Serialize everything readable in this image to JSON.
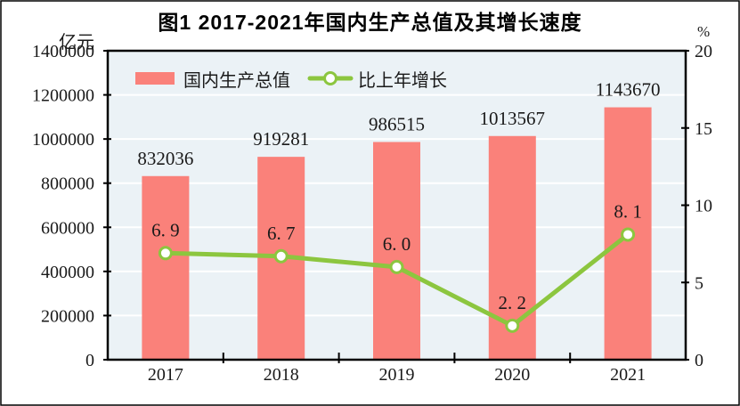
{
  "figure": {
    "title": "图1  2017-2021年国内生产总值及其增长速度",
    "left_axis_unit": "亿元",
    "right_axis_unit": "%"
  },
  "legend": {
    "position": "top-left-inside",
    "items": [
      {
        "label": "国内生产总值",
        "marker": "bar-swatch"
      },
      {
        "label": "比上年增长",
        "marker": "line-with-circle-marker"
      }
    ]
  },
  "colors": {
    "bar": "#FA817A",
    "line": "#8CC63F",
    "marker_fill": "#FFFFFF",
    "plot_bg": "#EBF2F6",
    "grid": "#FFFFFF",
    "axis": "#000000",
    "text": "#1A1A1A",
    "background": "#FFFFFF"
  },
  "chart_data": {
    "type": "bar+line",
    "title": "图1  2017-2021年国内生产总值及其增长速度",
    "categories": [
      "2017",
      "2018",
      "2019",
      "2020",
      "2021"
    ],
    "series": [
      {
        "name": "国内生产总值",
        "type": "bar",
        "axis": "left",
        "unit": "亿元",
        "values": [
          832036,
          919281,
          986515,
          1013567,
          1143670
        ],
        "data_labels": [
          "832036",
          "919281",
          "986515",
          "1013567",
          "1143670"
        ]
      },
      {
        "name": "比上年增长",
        "type": "line",
        "axis": "right",
        "unit": "%",
        "values": [
          6.9,
          6.7,
          6.0,
          2.2,
          8.1
        ],
        "data_labels": [
          "6. 9",
          "6. 7",
          "6. 0",
          "2. 2",
          "8. 1"
        ]
      }
    ],
    "left_axis": {
      "label": "亿元",
      "min": 0,
      "max": 1400000,
      "ticks": [
        0,
        200000,
        400000,
        600000,
        800000,
        1000000,
        1200000,
        1400000
      ],
      "tick_labels": [
        "0",
        "200000",
        "400000",
        "600000",
        "800000",
        "1000000",
        "1200000",
        "1400000"
      ]
    },
    "right_axis": {
      "label": "%",
      "min": 0,
      "max": 20,
      "ticks": [
        0,
        5,
        10,
        15,
        20
      ],
      "tick_labels": [
        "0",
        "5",
        "10",
        "15",
        "20"
      ]
    },
    "grid": "horizontal-white",
    "legend_position": "top-left-inside"
  }
}
